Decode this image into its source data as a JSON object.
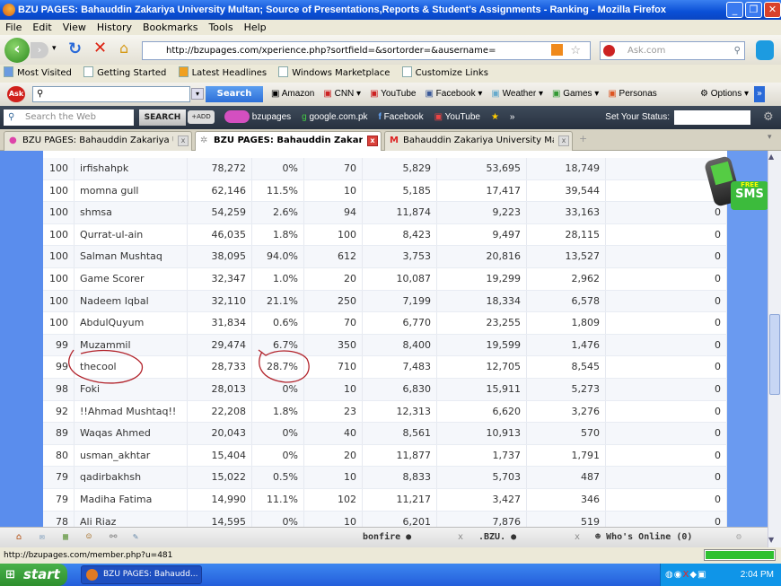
{
  "window": {
    "title": "BZU PAGES: Bahauddin Zakariya University Multan; Source of Presentations,Reports & Student's Assignments - Ranking - Mozilla Firefox"
  },
  "menu": [
    "File",
    "Edit",
    "View",
    "History",
    "Bookmarks",
    "Tools",
    "Help"
  ],
  "nav": {
    "url": "http://bzupages.com/xperience.php?sortfield=&sortorder=&ausername=",
    "search_placeholder": "Ask.com"
  },
  "bookmarks": [
    "Most Visited",
    "Getting Started",
    "Latest Headlines",
    "Windows Marketplace",
    "Customize Links"
  ],
  "ask_toolbar": {
    "search_label": "Search",
    "links": [
      "Amazon",
      "CNN ▾",
      "YouTube",
      "Facebook ▾",
      "Weather ▾",
      "Games ▾",
      "Personas"
    ],
    "options": "Options ▾"
  },
  "dark_toolbar": {
    "search_placeholder": "Search the Web",
    "search_button": "SEARCH",
    "add_button": "+ADD",
    "links": [
      "bzupages",
      "google.com.pk",
      "Facebook",
      "YouTube"
    ],
    "more": "»",
    "status_label": "Set Your Status:"
  },
  "tabs": [
    {
      "label": "BZU PAGES: Bahauddin Zakariya Univer..."
    },
    {
      "label": "BZU PAGES: Bahauddin Zakariya ..."
    },
    {
      "label": "Bahauddin Zakariya University Mail - In..."
    }
  ],
  "table": {
    "rows": [
      [
        "100",
        "irfishahpk",
        "78,272",
        "0%",
        "70",
        "5,829",
        "53,695",
        "18,749",
        "0"
      ],
      [
        "100",
        "momna gull",
        "62,146",
        "11.5%",
        "10",
        "5,185",
        "17,417",
        "39,544",
        "0"
      ],
      [
        "100",
        "shmsa",
        "54,259",
        "2.6%",
        "94",
        "11,874",
        "9,223",
        "33,163",
        "0"
      ],
      [
        "100",
        "Qurrat-ul-ain",
        "46,035",
        "1.8%",
        "100",
        "8,423",
        "9,497",
        "28,115",
        "0"
      ],
      [
        "100",
        "Salman Mushtaq",
        "38,095",
        "94.0%",
        "612",
        "3,753",
        "20,816",
        "13,527",
        "0"
      ],
      [
        "100",
        "Game Scorer",
        "32,347",
        "1.0%",
        "20",
        "10,087",
        "19,299",
        "2,962",
        "0"
      ],
      [
        "100",
        "Nadeem Iqbal",
        "32,110",
        "21.1%",
        "250",
        "7,199",
        "18,334",
        "6,578",
        "0"
      ],
      [
        "100",
        "AbdulQuyum",
        "31,834",
        "0.6%",
        "70",
        "6,770",
        "23,255",
        "1,809",
        "0"
      ],
      [
        "99",
        "Muzammil",
        "29,474",
        "6.7%",
        "350",
        "8,400",
        "19,599",
        "1,476",
        "0"
      ],
      [
        "99",
        "thecool",
        "28,733",
        "28.7%",
        "710",
        "7,483",
        "12,705",
        "8,545",
        "0"
      ],
      [
        "98",
        "Foki",
        "28,013",
        "0%",
        "10",
        "6,830",
        "15,911",
        "5,273",
        "0"
      ],
      [
        "92",
        "!!Ahmad Mushtaq!!",
        "22,208",
        "1.8%",
        "23",
        "12,313",
        "6,620",
        "3,276",
        "0"
      ],
      [
        "89",
        "Waqas Ahmed",
        "20,043",
        "0%",
        "40",
        "8,561",
        "10,913",
        "570",
        "0"
      ],
      [
        "80",
        "usman_akhtar",
        "15,404",
        "0%",
        "20",
        "11,877",
        "1,737",
        "1,791",
        "0"
      ],
      [
        "79",
        "qadirbakhsh",
        "15,022",
        "0.5%",
        "10",
        "8,833",
        "5,703",
        "487",
        "0"
      ],
      [
        "79",
        "Madiha Fatima",
        "14,990",
        "11.1%",
        "102",
        "11,217",
        "3,427",
        "346",
        "0"
      ],
      [
        "78",
        "Ali Riaz",
        "14,595",
        "0%",
        "10",
        "6,201",
        "7,876",
        "519",
        "0"
      ]
    ]
  },
  "sms_badge": {
    "line1": "FREE",
    "line2": "SMS"
  },
  "bonfire": {
    "tab1": "bonfire ●",
    "tab2": ".BZU. ●",
    "close": "x",
    "online": "Who's Online (0)"
  },
  "status": {
    "text": "http://bzupages.com/member.php?u=481",
    "progress": 100
  },
  "taskbar": {
    "start": "start",
    "task": "BZU PAGES: Bahaudd...",
    "clock": "2:04 PM"
  }
}
